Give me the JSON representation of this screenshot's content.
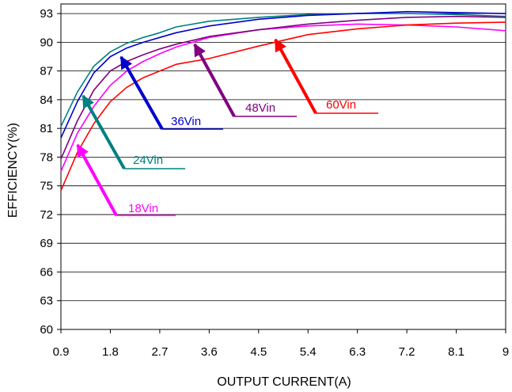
{
  "chart_data": {
    "type": "line",
    "xlabel": "OUTPUT CURRENT(A)",
    "ylabel": "EFFICIENCY(%)",
    "xlim": [
      0.9,
      9
    ],
    "ylim": [
      60,
      94
    ],
    "x_ticks": [
      "0.9",
      "1.8",
      "2.7",
      "3.6",
      "4.5",
      "5.4",
      "6.3",
      "7.2",
      "8.1",
      "9"
    ],
    "y_ticks": [
      "60",
      "63",
      "66",
      "69",
      "72",
      "75",
      "78",
      "81",
      "84",
      "87",
      "90",
      "93"
    ],
    "grid": "horizontal",
    "legend": "none",
    "series": [
      {
        "name": "18Vin",
        "color": "#ff00ff",
        "x": [
          0.9,
          1.2,
          1.5,
          1.8,
          2.1,
          2.4,
          2.7,
          3.0,
          3.6,
          4.5,
          5.4,
          6.3,
          7.2,
          8.1,
          9.0
        ],
        "values": [
          76.5,
          80.5,
          83.3,
          85.5,
          87.0,
          88.0,
          88.8,
          89.5,
          90.5,
          91.3,
          91.7,
          91.9,
          91.8,
          91.6,
          91.2
        ]
      },
      {
        "name": "24Vin",
        "color": "#008080",
        "x": [
          0.9,
          1.2,
          1.5,
          1.8,
          2.1,
          2.4,
          2.7,
          3.0,
          3.6,
          4.5,
          5.4,
          6.3,
          7.2,
          8.1,
          9.0
        ],
        "values": [
          81.2,
          84.8,
          87.5,
          89.0,
          89.9,
          90.5,
          91.0,
          91.6,
          92.2,
          92.6,
          92.9,
          93.0,
          93.0,
          92.9,
          92.7
        ]
      },
      {
        "name": "36Vin",
        "color": "#0000cc",
        "x": [
          0.9,
          1.2,
          1.5,
          1.8,
          2.1,
          2.4,
          2.7,
          3.0,
          3.6,
          4.5,
          5.4,
          6.3,
          7.2,
          8.1,
          9.0
        ],
        "values": [
          80.0,
          83.8,
          86.8,
          88.5,
          89.4,
          90.0,
          90.5,
          91.0,
          91.7,
          92.4,
          92.8,
          93.0,
          93.2,
          93.1,
          93.0
        ]
      },
      {
        "name": "48Vin",
        "color": "#800080",
        "x": [
          0.9,
          1.2,
          1.5,
          1.8,
          2.1,
          2.4,
          2.7,
          3.0,
          3.6,
          4.5,
          5.4,
          6.3,
          7.2,
          8.1,
          9.0
        ],
        "values": [
          77.8,
          81.8,
          85.0,
          87.0,
          88.0,
          88.7,
          89.3,
          89.8,
          90.6,
          91.3,
          91.9,
          92.3,
          92.6,
          92.7,
          92.6
        ]
      },
      {
        "name": "60Vin",
        "color": "#ff0000",
        "x": [
          0.9,
          1.2,
          1.5,
          1.8,
          2.1,
          2.4,
          2.7,
          3.0,
          3.6,
          4.5,
          5.4,
          6.3,
          7.2,
          8.1,
          9.0
        ],
        "values": [
          74.5,
          78.5,
          81.5,
          83.8,
          85.3,
          86.3,
          87.0,
          87.7,
          88.3,
          89.6,
          90.8,
          91.4,
          91.8,
          92.0,
          92.1
        ]
      }
    ],
    "annotations": [
      {
        "text": "18Vin",
        "color": "#ff00ff"
      },
      {
        "text": "24Vin",
        "color": "#008080"
      },
      {
        "text": "36Vin",
        "color": "#0000cc"
      },
      {
        "text": "48Vin",
        "color": "#800080"
      },
      {
        "text": "60Vin",
        "color": "#ff0000"
      }
    ]
  }
}
